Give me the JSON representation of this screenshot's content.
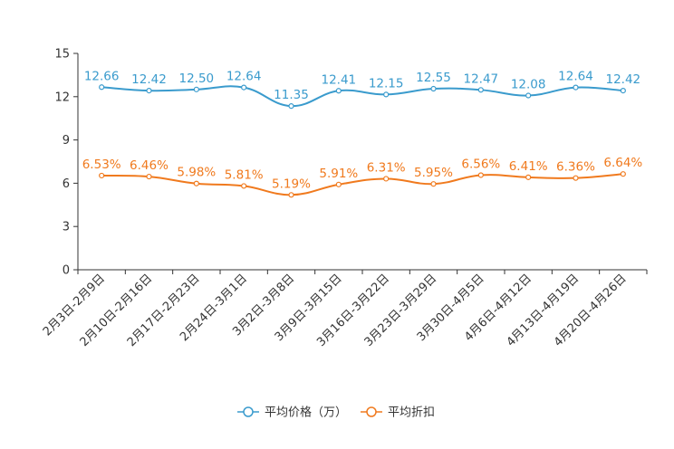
{
  "chart_data": {
    "type": "line",
    "categories": [
      "2月3日-2月9日",
      "2月10日-2月16日",
      "2月17日-2月23日",
      "2月24日-3月1日",
      "3月2日-3月8日",
      "3月9日-3月15日",
      "3月16日-3月22日",
      "3月23日-3月29日",
      "3月30日-4月5日",
      "4月6日-4月12日",
      "4月13日-4月19日",
      "4月20日-4月26日"
    ],
    "ylim": [
      0,
      15
    ],
    "yticks": [
      "0",
      "3",
      "6",
      "9",
      "12",
      "15"
    ],
    "grid": false,
    "legend": "bottom-center",
    "series": [
      {
        "name": "平均价格（万）",
        "color": "#3a9bcd",
        "values": [
          12.66,
          12.42,
          12.5,
          12.64,
          11.35,
          12.41,
          12.15,
          12.55,
          12.47,
          12.08,
          12.64,
          12.42
        ],
        "labels": [
          "12.66",
          "12.42",
          "12.50",
          "12.64",
          "11.35",
          "12.41",
          "12.15",
          "12.55",
          "12.47",
          "12.08",
          "12.64",
          "12.42"
        ]
      },
      {
        "name": "平均折扣",
        "color": "#f07a1e",
        "values": [
          6.53,
          6.46,
          5.98,
          5.81,
          5.19,
          5.91,
          6.31,
          5.95,
          6.56,
          6.41,
          6.36,
          6.64
        ],
        "labels": [
          "6.53%",
          "6.46%",
          "5.98%",
          "5.81%",
          "5.19%",
          "5.91%",
          "6.31%",
          "5.95%",
          "6.56%",
          "6.41%",
          "6.36%",
          "6.64%"
        ]
      }
    ]
  }
}
